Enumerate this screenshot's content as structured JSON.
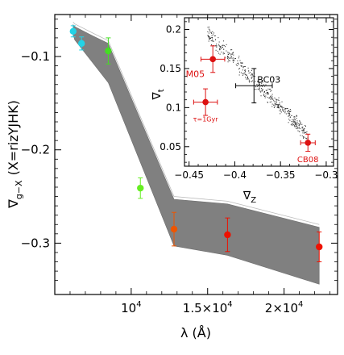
{
  "chart_data": [
    {
      "type": "scatter",
      "xlabel": "λ (Å)",
      "ylabel": "∇",
      "ylabel_sub": "g−X",
      "ylabel_suffix": "(X=rizYJHK)",
      "xlim": [
        5000,
        23500
      ],
      "ylim": [
        -0.355,
        -0.055
      ],
      "x_ticks": [
        {
          "value": 10000,
          "base": "10",
          "exp": "4"
        },
        {
          "value": 15000,
          "base": "1.5×10",
          "exp": "4"
        },
        {
          "value": 20000,
          "base": "2×10",
          "exp": "4"
        }
      ],
      "y_ticks": [
        {
          "value": -0.1,
          "label": "−0.1"
        },
        {
          "value": -0.2,
          "label": "−0.2"
        },
        {
          "value": -0.3,
          "label": "−0.3"
        }
      ],
      "band": {
        "color": "#808080",
        "x": [
          6200,
          6300,
          7500,
          8500,
          12800,
          16300,
          22300
        ],
        "upper": [
          -0.066,
          -0.068,
          -0.078,
          -0.086,
          -0.253,
          -0.258,
          -0.283
        ],
        "lower": [
          -0.076,
          -0.082,
          -0.107,
          -0.128,
          -0.303,
          -0.313,
          -0.344
        ]
      },
      "points": [
        {
          "x": 6200,
          "y": -0.073,
          "yerr": 0.006,
          "color": "#22d3e6"
        },
        {
          "x": 6750,
          "y": -0.086,
          "yerr": 0.007,
          "color": "#22d3e6"
        },
        {
          "x": 8500,
          "y": -0.094,
          "yerr": 0.014,
          "color": "#44dd22"
        },
        {
          "x": 10600,
          "y": -0.241,
          "yerr": 0.011,
          "color": "#66ee22"
        },
        {
          "x": 12800,
          "y": -0.285,
          "yerr": 0.018,
          "color": "#ee5500"
        },
        {
          "x": 16300,
          "y": -0.291,
          "yerr": 0.018,
          "color": "#ee1100"
        },
        {
          "x": 22300,
          "y": -0.304,
          "yerr": 0.016,
          "color": "#ee1100"
        }
      ]
    },
    {
      "type": "scatter",
      "xlabel": "∇",
      "xlabel_sub": "Z",
      "ylabel": "∇",
      "ylabel_sub": "t",
      "xlim": [
        -0.455,
        -0.292
      ],
      "ylim": [
        0.025,
        0.215
      ],
      "x_ticks": [
        {
          "value": -0.45,
          "label": "−0.45"
        },
        {
          "value": -0.4,
          "label": "−0.4"
        },
        {
          "value": -0.35,
          "label": "−0.35"
        },
        {
          "value": -0.3,
          "label": "−0.3"
        }
      ],
      "y_ticks": [
        {
          "value": 0.05,
          "label": "0.05"
        },
        {
          "value": 0.1,
          "label": "0.1"
        },
        {
          "value": 0.15,
          "label": "0.15"
        },
        {
          "value": 0.2,
          "label": "0.2"
        }
      ],
      "cloud": {
        "x_range": [
          -0.43,
          -0.32
        ],
        "y_at_start": 0.195,
        "y_at_end": 0.065,
        "scatter": 0.012,
        "n": 450
      },
      "points": [
        {
          "label": "M05",
          "x": -0.424,
          "y": 0.162,
          "xerr": 0.013,
          "yerr": 0.017,
          "color": "#dd1111"
        },
        {
          "label": "τ=1Gyr",
          "x": -0.432,
          "y": 0.107,
          "xerr": 0.013,
          "yerr": 0.017,
          "color": "#dd1111"
        },
        {
          "label": "BC03",
          "x": -0.379,
          "y": 0.128,
          "xerr": 0.02,
          "yerr": 0.022,
          "color": "#000000"
        },
        {
          "label": "CB08",
          "x": -0.32,
          "y": 0.055,
          "xerr": 0.008,
          "yerr": 0.011,
          "color": "#dd1111"
        }
      ]
    }
  ]
}
